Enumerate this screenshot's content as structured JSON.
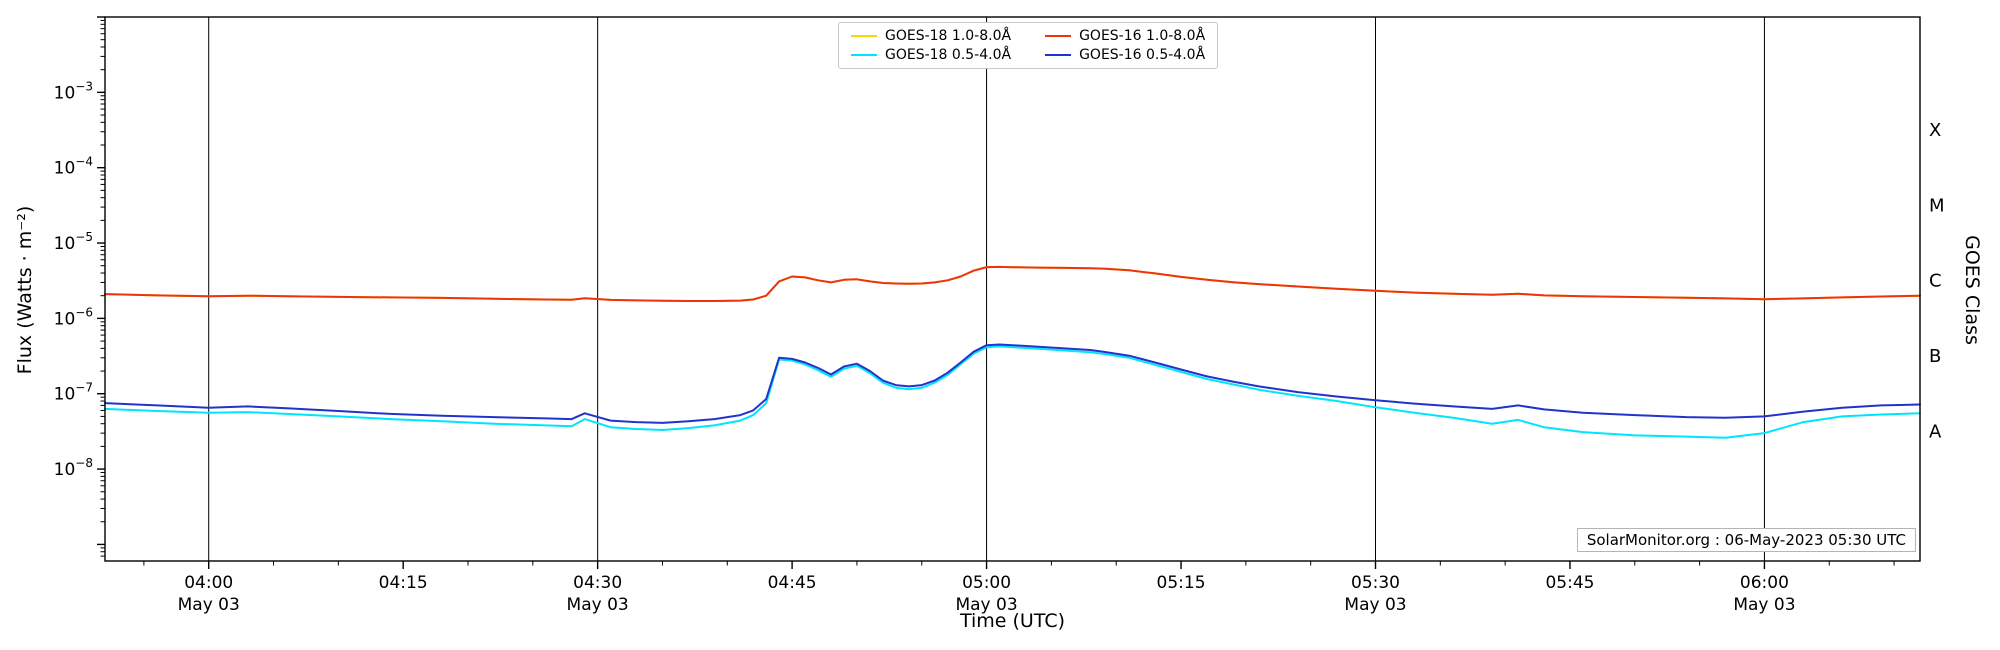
{
  "page": {
    "background": "#ffffff",
    "annotation": "SolarMonitor.org : 06-May-2023 05:30 UTC"
  },
  "chart_data": {
    "type": "line",
    "title": "",
    "xlabel": "Time (UTC)",
    "ylabel": "Flux (Watts · m⁻²)",
    "ylabel_right": "GOES Class",
    "x_unit": "minutes UTC (240 = 04:00 on May 03)",
    "xlim": [
      232,
      372
    ],
    "y_scale": "log",
    "ylog_range": [
      -9.22,
      -2.0
    ],
    "y_labeled_exponents": [
      -8,
      -7,
      -6,
      -5,
      -4,
      -3
    ],
    "grid": "vertical black lines at 30-min date ticks only",
    "legend_position": "top center",
    "frame_color": "#000000",
    "x_minor_step_minutes": 5,
    "x_ticks": [
      {
        "t": 240,
        "label": "04:00",
        "date": "May 03"
      },
      {
        "t": 255,
        "label": "04:15"
      },
      {
        "t": 270,
        "label": "04:30",
        "date": "May 03"
      },
      {
        "t": 285,
        "label": "04:45"
      },
      {
        "t": 300,
        "label": "05:00",
        "date": "May 03"
      },
      {
        "t": 315,
        "label": "05:15"
      },
      {
        "t": 330,
        "label": "05:30",
        "date": "May 03"
      },
      {
        "t": 345,
        "label": "05:45"
      },
      {
        "t": 360,
        "label": "06:00",
        "date": "May 03"
      }
    ],
    "goes_classes": [
      {
        "label": "A",
        "log_center": -7.5
      },
      {
        "label": "B",
        "log_center": -6.5
      },
      {
        "label": "C",
        "log_center": -5.5
      },
      {
        "label": "M",
        "log_center": -4.5
      },
      {
        "label": "X",
        "log_center": -3.5
      }
    ],
    "x": [
      232,
      236,
      240,
      243,
      246,
      250,
      254,
      258,
      262,
      266,
      268,
      269,
      271,
      273,
      275,
      277,
      279,
      281,
      282,
      283,
      284,
      285,
      286,
      287,
      288,
      289,
      290,
      291,
      292,
      293,
      294,
      295,
      296,
      297,
      298,
      299,
      300,
      301,
      302,
      304,
      306,
      308,
      309,
      311,
      313,
      315,
      317,
      319,
      321,
      324,
      327,
      330,
      333,
      336,
      339,
      341,
      343,
      346,
      350,
      354,
      357,
      360,
      363,
      366,
      369,
      372
    ],
    "series": [
      {
        "name": "GOES-18 1.0-8.0Å",
        "color": "#ffd700",
        "note": "overlaps GOES-16 1.0-8.0Å (hidden beneath red curve)",
        "values": [
          2.1e-06,
          2.02e-06,
          1.97e-06,
          2e-06,
          1.97e-06,
          1.93e-06,
          1.9e-06,
          1.87e-06,
          1.82e-06,
          1.78e-06,
          1.77e-06,
          1.85e-06,
          1.76e-06,
          1.73e-06,
          1.71e-06,
          1.7e-06,
          1.7e-06,
          1.72e-06,
          1.78e-06,
          2e-06,
          3.1e-06,
          3.6e-06,
          3.5e-06,
          3.2e-06,
          3e-06,
          3.25e-06,
          3.3e-06,
          3.1e-06,
          2.95e-06,
          2.9e-06,
          2.88e-06,
          2.9e-06,
          3e-06,
          3.2e-06,
          3.6e-06,
          4.3e-06,
          4.8e-06,
          4.82e-06,
          4.78e-06,
          4.72e-06,
          4.68e-06,
          4.62e-06,
          4.58e-06,
          4.35e-06,
          3.95e-06,
          3.55e-06,
          3.25e-06,
          3.02e-06,
          2.85e-06,
          2.65e-06,
          2.48e-06,
          2.32e-06,
          2.2e-06,
          2.12e-06,
          2.06e-06,
          2.12e-06,
          2.02e-06,
          1.97e-06,
          1.92e-06,
          1.88e-06,
          1.84e-06,
          1.8e-06,
          1.84e-06,
          1.9e-06,
          1.95e-06,
          2e-06
        ]
      },
      {
        "name": "GOES-18 0.5-4.0Å",
        "color": "#00e5ff",
        "values": [
          6.3e-08,
          5.9e-08,
          5.6e-08,
          5.7e-08,
          5.4e-08,
          5e-08,
          4.6e-08,
          4.3e-08,
          4e-08,
          3.8e-08,
          3.7e-08,
          4.6e-08,
          3.6e-08,
          3.4e-08,
          3.3e-08,
          3.5e-08,
          3.8e-08,
          4.4e-08,
          5.2e-08,
          7.5e-08,
          2.85e-07,
          2.75e-07,
          2.45e-07,
          2.05e-07,
          1.68e-07,
          2.15e-07,
          2.35e-07,
          1.88e-07,
          1.4e-07,
          1.2e-07,
          1.15e-07,
          1.2e-07,
          1.4e-07,
          1.78e-07,
          2.45e-07,
          3.4e-07,
          4.15e-07,
          4.25e-07,
          4.15e-07,
          3.95e-07,
          3.75e-07,
          3.55e-07,
          3.38e-07,
          3e-07,
          2.42e-07,
          1.95e-07,
          1.57e-07,
          1.33e-07,
          1.13e-07,
          9.4e-08,
          8e-08,
          6.6e-08,
          5.6e-08,
          4.8e-08,
          4e-08,
          4.5e-08,
          3.6e-08,
          3.1e-08,
          2.8e-08,
          2.7e-08,
          2.6e-08,
          3e-08,
          4.2e-08,
          5e-08,
          5.3e-08,
          5.5e-08
        ]
      },
      {
        "name": "GOES-16 1.0-8.0Å",
        "color": "#ee3311",
        "values": [
          2.1e-06,
          2.02e-06,
          1.97e-06,
          2e-06,
          1.97e-06,
          1.93e-06,
          1.9e-06,
          1.87e-06,
          1.82e-06,
          1.78e-06,
          1.77e-06,
          1.85e-06,
          1.76e-06,
          1.73e-06,
          1.71e-06,
          1.7e-06,
          1.7e-06,
          1.72e-06,
          1.78e-06,
          2e-06,
          3.1e-06,
          3.6e-06,
          3.5e-06,
          3.2e-06,
          3e-06,
          3.25e-06,
          3.3e-06,
          3.1e-06,
          2.95e-06,
          2.9e-06,
          2.88e-06,
          2.9e-06,
          3e-06,
          3.2e-06,
          3.6e-06,
          4.3e-06,
          4.8e-06,
          4.82e-06,
          4.78e-06,
          4.72e-06,
          4.68e-06,
          4.62e-06,
          4.58e-06,
          4.35e-06,
          3.95e-06,
          3.55e-06,
          3.25e-06,
          3.02e-06,
          2.85e-06,
          2.65e-06,
          2.48e-06,
          2.32e-06,
          2.2e-06,
          2.12e-06,
          2.06e-06,
          2.12e-06,
          2.02e-06,
          1.97e-06,
          1.92e-06,
          1.88e-06,
          1.84e-06,
          1.8e-06,
          1.84e-06,
          1.9e-06,
          1.95e-06,
          2e-06
        ]
      },
      {
        "name": "GOES-16 0.5-4.0Å",
        "color": "#2233cc",
        "values": [
          7.5e-08,
          7e-08,
          6.5e-08,
          6.8e-08,
          6.4e-08,
          5.9e-08,
          5.4e-08,
          5.1e-08,
          4.9e-08,
          4.7e-08,
          4.6e-08,
          5.5e-08,
          4.4e-08,
          4.2e-08,
          4.1e-08,
          4.3e-08,
          4.6e-08,
          5.2e-08,
          6e-08,
          8.5e-08,
          3e-07,
          2.9e-07,
          2.6e-07,
          2.2e-07,
          1.8e-07,
          2.3e-07,
          2.5e-07,
          2e-07,
          1.5e-07,
          1.3e-07,
          1.25e-07,
          1.3e-07,
          1.5e-07,
          1.9e-07,
          2.6e-07,
          3.6e-07,
          4.4e-07,
          4.5e-07,
          4.4e-07,
          4.2e-07,
          4e-07,
          3.8e-07,
          3.6e-07,
          3.2e-07,
          2.6e-07,
          2.1e-07,
          1.7e-07,
          1.45e-07,
          1.25e-07,
          1.05e-07,
          9.2e-08,
          8.2e-08,
          7.4e-08,
          6.8e-08,
          6.3e-08,
          7e-08,
          6.2e-08,
          5.6e-08,
          5.2e-08,
          4.9e-08,
          4.8e-08,
          5e-08,
          5.8e-08,
          6.5e-08,
          7e-08,
          7.2e-08
        ]
      }
    ]
  }
}
